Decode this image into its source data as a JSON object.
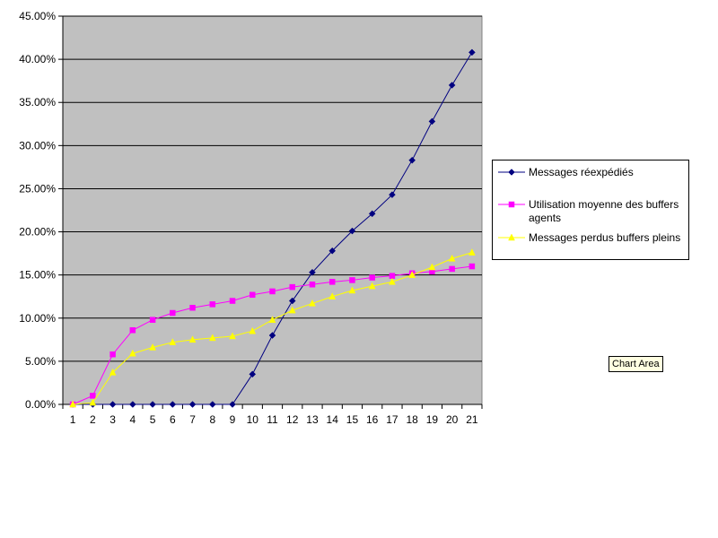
{
  "chart_data": {
    "type": "line",
    "categories": [
      "1",
      "2",
      "3",
      "4",
      "5",
      "6",
      "7",
      "8",
      "9",
      "10",
      "11",
      "12",
      "13",
      "14",
      "15",
      "16",
      "17",
      "18",
      "19",
      "20",
      "21"
    ],
    "series": [
      {
        "name": "Messages réexpédiés",
        "color": "#000080",
        "marker": "diamond",
        "values": [
          0,
          0,
          0,
          0,
          0,
          0,
          0,
          0,
          0,
          3.5,
          8.0,
          12.0,
          15.3,
          17.8,
          20.1,
          22.1,
          24.3,
          28.3,
          32.8,
          37.0,
          40.8
        ]
      },
      {
        "name": "Utilisation moyenne des buffers agents",
        "color": "#ff00ff",
        "marker": "square",
        "values": [
          0,
          1.0,
          5.8,
          8.6,
          9.8,
          10.6,
          11.2,
          11.6,
          12.0,
          12.7,
          13.1,
          13.6,
          13.9,
          14.2,
          14.4,
          14.7,
          14.9,
          15.2,
          15.4,
          15.7,
          16.0
        ]
      },
      {
        "name": "Messages perdus buffers pleins",
        "color": "#ffff00",
        "marker": "triangle",
        "values": [
          0,
          0.2,
          3.7,
          5.9,
          6.6,
          7.2,
          7.5,
          7.7,
          7.9,
          8.5,
          9.8,
          10.9,
          11.7,
          12.5,
          13.2,
          13.7,
          14.2,
          15.0,
          15.9,
          16.9,
          17.6
        ]
      }
    ],
    "title": "",
    "xlabel": "",
    "ylabel": "",
    "ylim": [
      0,
      45
    ],
    "yticks": [
      0,
      5,
      10,
      15,
      20,
      25,
      30,
      35,
      40,
      45
    ],
    "ytick_labels": [
      "0.00%",
      "5.00%",
      "10.00%",
      "15.00%",
      "20.00%",
      "25.00%",
      "30.00%",
      "35.00%",
      "40.00%",
      "45.00%"
    ],
    "plot_background": "#c0c0c0",
    "grid": true,
    "legend_position": "right"
  },
  "tooltip": {
    "text": "Chart Area"
  }
}
